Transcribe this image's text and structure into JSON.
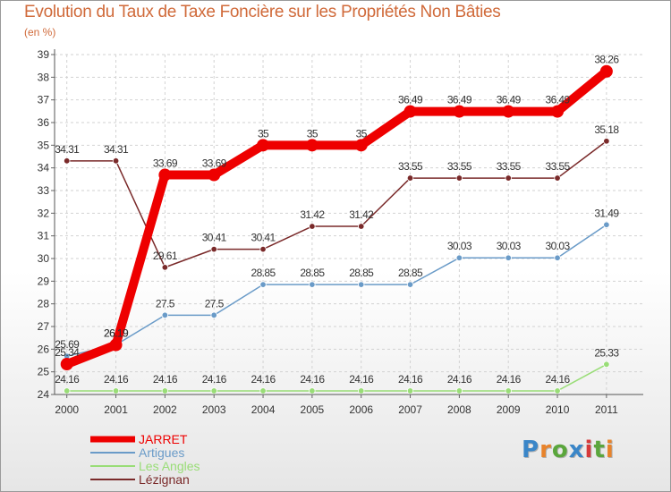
{
  "title": "Evolution du Taux de Taxe Foncière sur les Propriétés Non Bâties",
  "subtitle": "(en %)",
  "logo": {
    "text": "Proxiti",
    "colors": [
      "#3a86c8",
      "#e8832b",
      "#5aa63c",
      "#3a86c8",
      "#d63a3a",
      "#5aa63c",
      "#e8832b"
    ]
  },
  "chart_data": {
    "type": "line",
    "title": "Evolution du Taux de Taxe Foncière sur les Propriétés Non Bâties",
    "ylabel": "(en %)",
    "xlabel": "",
    "x": [
      "2000",
      "2001",
      "2002",
      "2003",
      "2004",
      "2005",
      "2006",
      "2007",
      "2008",
      "2009",
      "2010",
      "2011"
    ],
    "ylim": [
      24,
      39
    ],
    "yticks": [
      "24",
      "25",
      "26",
      "27",
      "28",
      "29",
      "30",
      "31",
      "32",
      "33",
      "34",
      "35",
      "36",
      "37",
      "38",
      "39"
    ],
    "grid": true,
    "legend_position": "bottom-left",
    "series": [
      {
        "name": "JARRET",
        "color": "#ee0000",
        "bold": true,
        "values": [
          25.34,
          26.19,
          33.69,
          33.69,
          35,
          35,
          35,
          36.49,
          36.49,
          36.49,
          36.49,
          38.26
        ],
        "labels": [
          "25.34",
          "26.19",
          "33.69",
          "33.69",
          "35",
          "35",
          "35",
          "36.49",
          "36.49",
          "36.49",
          "36.49",
          "38.26"
        ]
      },
      {
        "name": "Artigues",
        "color": "#6a9bc8",
        "bold": false,
        "values": [
          25.69,
          26.19,
          27.5,
          27.5,
          28.85,
          28.85,
          28.85,
          28.85,
          30.03,
          30.03,
          30.03,
          31.49
        ],
        "labels": [
          "25.69",
          "26.19",
          "27.5",
          "27.5",
          "28.85",
          "28.85",
          "28.85",
          "28.85",
          "30.03",
          "30.03",
          "30.03",
          "31.49"
        ]
      },
      {
        "name": "Les Angles",
        "color": "#99dd77",
        "bold": false,
        "values": [
          24.16,
          24.16,
          24.16,
          24.16,
          24.16,
          24.16,
          24.16,
          24.16,
          24.16,
          24.16,
          24.16,
          25.33
        ],
        "labels": [
          "24.16",
          "24.16",
          "24.16",
          "24.16",
          "24.16",
          "24.16",
          "24.16",
          "24.16",
          "24.16",
          "24.16",
          "24.16",
          "25.33"
        ]
      },
      {
        "name": "Lézignan",
        "color": "#7a2a2a",
        "bold": false,
        "values": [
          34.31,
          34.31,
          29.61,
          30.41,
          30.41,
          31.42,
          31.42,
          33.55,
          33.55,
          33.55,
          33.55,
          35.18
        ],
        "labels": [
          "34.31",
          "34.31",
          "29.61",
          "30.41",
          "30.41",
          "31.42",
          "31.42",
          "33.55",
          "33.55",
          "33.55",
          "33.55",
          "35.18"
        ]
      }
    ]
  }
}
